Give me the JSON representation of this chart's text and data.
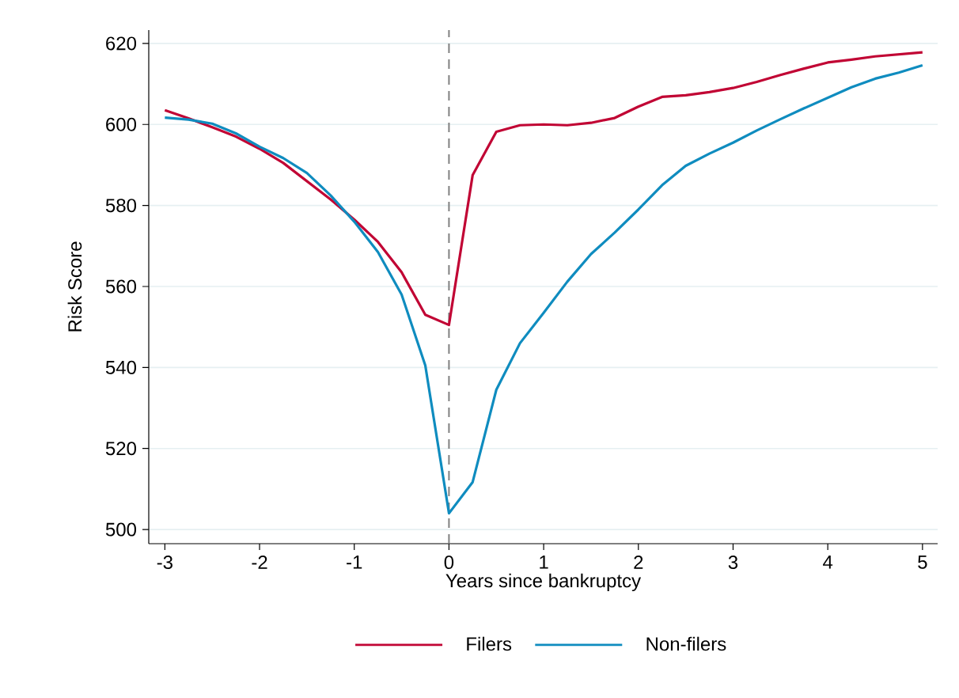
{
  "chart_data": {
    "type": "line",
    "xlabel": "Years since bankruptcy",
    "ylabel": "Risk Score",
    "x": [
      -3,
      -2.75,
      -2.5,
      -2.25,
      -2,
      -1.75,
      -1.5,
      -1.25,
      -1,
      -0.75,
      -0.5,
      -0.25,
      0,
      0.25,
      0.5,
      0.75,
      1,
      1.25,
      1.5,
      1.75,
      2,
      2.25,
      2.5,
      2.75,
      3,
      3.25,
      3.5,
      3.75,
      4,
      4.25,
      4.5,
      4.75,
      5
    ],
    "series": [
      {
        "name": "Filers",
        "color": "#c10534",
        "values": [
          603.5,
          601.5,
          599.3,
          597,
          594,
          590.5,
          586,
          581.5,
          576.5,
          571,
          563.5,
          553,
          550.5,
          587.5,
          598.2,
          599.8,
          600,
          599.8,
          600.4,
          601.6,
          604.4,
          606.8,
          607.2,
          608,
          609,
          610.5,
          612.2,
          613.8,
          615.3,
          616,
          616.8,
          617.3,
          617.8
        ]
      },
      {
        "name": "Non-filers",
        "color": "#0f8cbf",
        "values": [
          601.7,
          601.2,
          600.2,
          597.8,
          594.5,
          591.7,
          588,
          582.5,
          576,
          568.5,
          558,
          540.5,
          504,
          511.7,
          534.5,
          546,
          553.5,
          561.2,
          568,
          573.3,
          579,
          585,
          589.8,
          592.8,
          595.5,
          598.5,
          601.3,
          604,
          606.6,
          609.2,
          611.3,
          612.8,
          614.6
        ]
      }
    ],
    "xlim": [
      -3.17,
      5.16
    ],
    "ylim": [
      496.5,
      623.3
    ],
    "xticks": [
      -3,
      -2,
      -1,
      0,
      1,
      2,
      3,
      4,
      5
    ],
    "yticks": [
      500,
      520,
      540,
      560,
      580,
      600,
      620
    ],
    "grid": "y",
    "legend": "bottom",
    "line_style": "solid",
    "marker": "none",
    "ref_lines": [
      {
        "axis": "x",
        "value": 0,
        "color": "#808080",
        "line_style": "dashed"
      }
    ]
  }
}
